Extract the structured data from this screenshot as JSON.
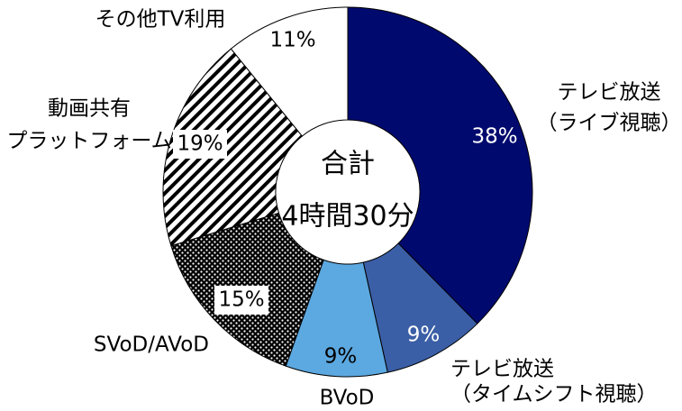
{
  "chart_data": {
    "type": "donut",
    "categories": [
      [
        "テレビ放送",
        "（ライブ視聴）"
      ],
      [
        "テレビ放送",
        "（タイムシフト視聴）"
      ],
      [
        "BVoD"
      ],
      [
        "SVoD/AVoD"
      ],
      [
        "動画共有",
        "プラットフォーム"
      ],
      [
        "その他TV利用"
      ]
    ],
    "values": [
      38,
      9,
      9,
      15,
      19,
      11
    ],
    "value_labels": [
      "38%",
      "9%",
      "9%",
      "15%",
      "19%",
      "11%"
    ],
    "fills": [
      "#000a6e",
      "#3b5fa6",
      "#5ca8e0",
      "dots",
      "stripes",
      "#ffffff"
    ],
    "center_text": [
      "合計",
      "4時間30分"
    ]
  }
}
